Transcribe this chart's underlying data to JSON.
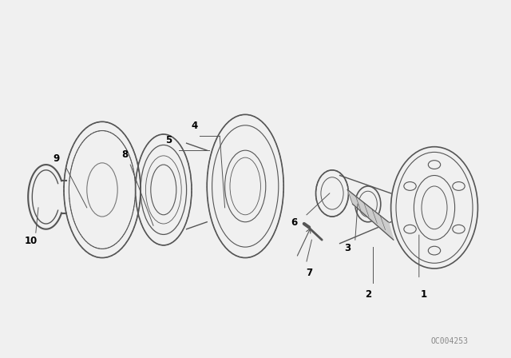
{
  "background_color": "#f0f0f0",
  "line_color": "#555555",
  "text_color": "#000000",
  "diagram_color": "#888888",
  "watermark": "OC004253",
  "label_fontsize": 8.5,
  "parts": [
    {
      "id": 1,
      "label": "1"
    },
    {
      "id": 2,
      "label": "2"
    },
    {
      "id": 3,
      "label": "3"
    },
    {
      "id": 4,
      "label": "4"
    },
    {
      "id": 5,
      "label": "5"
    },
    {
      "id": 6,
      "label": "6"
    },
    {
      "id": 7,
      "label": "7"
    },
    {
      "id": 8,
      "label": "8"
    },
    {
      "id": 9,
      "label": "9"
    },
    {
      "id": 10,
      "label": "10"
    }
  ]
}
